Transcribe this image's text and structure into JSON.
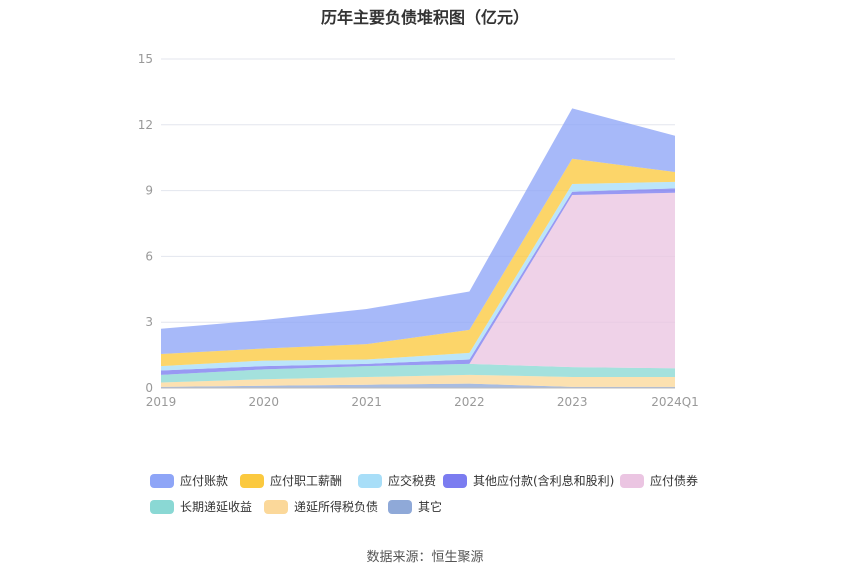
{
  "chart_data": {
    "type": "area",
    "stacked": true,
    "title": "历年主要负债堆积图（亿元）",
    "categories": [
      "2019",
      "2020",
      "2021",
      "2022",
      "2023",
      "2024Q1"
    ],
    "ylim": [
      0,
      15
    ],
    "yticks": [
      "0",
      "3",
      "6",
      "9",
      "12",
      "15"
    ],
    "grid": true,
    "legend_position": "bottom",
    "series": [
      {
        "name": "其它",
        "color": "#8fa9d8",
        "values": [
          0.05,
          0.1,
          0.15,
          0.2,
          0.05,
          0.05
        ]
      },
      {
        "name": "递延所得税负债",
        "color": "#fbd89a",
        "values": [
          0.2,
          0.3,
          0.35,
          0.4,
          0.45,
          0.45
        ]
      },
      {
        "name": "长期递延收益",
        "color": "#8ad8d4",
        "values": [
          0.35,
          0.45,
          0.5,
          0.5,
          0.45,
          0.4
        ]
      },
      {
        "name": "应付债券",
        "color": "#ebc5e2",
        "values": [
          0,
          0,
          0,
          0,
          7.85,
          8.0
        ]
      },
      {
        "name": "其他应付款(含利息和股利)",
        "color": "#7b7cf0",
        "values": [
          0.2,
          0.15,
          0.1,
          0.2,
          0.15,
          0.2
        ]
      },
      {
        "name": "应交税费",
        "color": "#a8def8",
        "values": [
          0.2,
          0.25,
          0.2,
          0.3,
          0.35,
          0.3
        ]
      },
      {
        "name": "应付职工薪酬",
        "color": "#fbc93f",
        "values": [
          0.55,
          0.55,
          0.7,
          1.05,
          1.15,
          0.45
        ]
      },
      {
        "name": "应付账款",
        "color": "#8ea5f7",
        "values": [
          1.15,
          1.3,
          1.6,
          1.75,
          2.3,
          1.65
        ]
      }
    ],
    "legend_order": [
      "应付账款",
      "应付职工薪酬",
      "应交税费",
      "其他应付款(含利息和股利)",
      "应付债券",
      "长期递延收益",
      "递延所得税负债",
      "其它"
    ]
  },
  "source_text": "数据来源：恒生聚源"
}
